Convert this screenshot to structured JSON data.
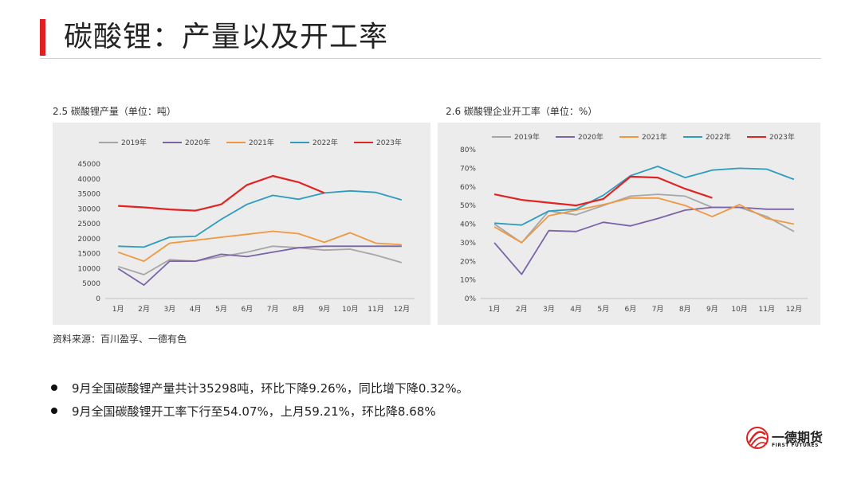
{
  "page": {
    "title": "碳酸锂：产量以及开工率",
    "source": "资料来源：百川盈孚、一德有色",
    "bullets": [
      "9月全国碳酸锂产量共计35298吨，环比下降9.26%，同比增下降0.32%。",
      "9月全国碳酸锂开工率下行至54.07%，上月59.21%，环比降8.68%"
    ],
    "logo": {
      "name_cn": "一德期货",
      "name_en": "FIRST FUTURES"
    }
  },
  "colors": {
    "2019年": "#a6a6a6",
    "2020年": "#7b63a8",
    "2021年": "#f0983e",
    "2022年": "#2e9cc0",
    "2023年": "#e02424",
    "accent": "#e02020"
  },
  "chart_data": [
    {
      "type": "line",
      "caption": "2.5 碳酸锂产量（单位：吨）",
      "categories": [
        "1月",
        "2月",
        "3月",
        "4月",
        "5月",
        "6月",
        "7月",
        "8月",
        "9月",
        "10月",
        "11月",
        "12月"
      ],
      "ylim": [
        0,
        45000
      ],
      "yticks": [
        0,
        5000,
        10000,
        15000,
        20000,
        25000,
        30000,
        35000,
        40000,
        45000
      ],
      "ytick_labels": [
        "0",
        "5000",
        "10000",
        "15000",
        "20000",
        "25000",
        "30000",
        "35000",
        "40000",
        "45000"
      ],
      "legend_position": "top",
      "grid": false,
      "series": [
        {
          "name": "2019年",
          "values": [
            10700,
            8000,
            13000,
            12500,
            14000,
            15500,
            17500,
            17000,
            16200,
            16500,
            14500,
            12000
          ]
        },
        {
          "name": "2020年",
          "values": [
            10000,
            4500,
            12500,
            12500,
            14800,
            14000,
            15500,
            17000,
            17500,
            17500,
            17500,
            17500
          ]
        },
        {
          "name": "2021年",
          "values": [
            15500,
            12500,
            18500,
            19500,
            20500,
            21500,
            22500,
            21700,
            18800,
            22000,
            18500,
            18000
          ]
        },
        {
          "name": "2022年",
          "values": [
            17500,
            17200,
            20500,
            20800,
            26500,
            31500,
            34500,
            33200,
            35300,
            36000,
            35500,
            33000
          ]
        },
        {
          "name": "2023年",
          "values": [
            31000,
            30500,
            29800,
            29400,
            31500,
            38000,
            41000,
            38900,
            35300,
            null,
            null,
            null
          ]
        }
      ]
    },
    {
      "type": "line",
      "caption": "2.6 碳酸锂企业开工率（单位：%）",
      "categories": [
        "1月",
        "2月",
        "3月",
        "4月",
        "5月",
        "6月",
        "7月",
        "8月",
        "9月",
        "10月",
        "11月",
        "12月"
      ],
      "ylim": [
        0,
        80
      ],
      "yticks": [
        0,
        10,
        20,
        30,
        40,
        50,
        60,
        70,
        80
      ],
      "ytick_labels": [
        "0%",
        "10%",
        "20%",
        "30%",
        "40%",
        "50%",
        "60%",
        "70%",
        "80%"
      ],
      "legend_position": "top",
      "grid": false,
      "series": [
        {
          "name": "2019年",
          "values": [
            40,
            30,
            47,
            45,
            50,
            55,
            56,
            55,
            49,
            49,
            44,
            36
          ]
        },
        {
          "name": "2020年",
          "values": [
            30,
            13,
            36.5,
            36,
            41,
            39,
            43,
            47.5,
            49,
            49,
            48,
            48
          ]
        },
        {
          "name": "2021年",
          "values": [
            38.5,
            30,
            44.5,
            47.5,
            50.5,
            54,
            54,
            50,
            44,
            50.5,
            43,
            40
          ]
        },
        {
          "name": "2022年",
          "values": [
            40.5,
            39.5,
            47,
            48,
            55.5,
            66,
            71,
            65,
            69,
            70,
            69.5,
            64
          ]
        },
        {
          "name": "2023年",
          "values": [
            56,
            53,
            51.5,
            50,
            53.5,
            65.5,
            65,
            59,
            54.07,
            null,
            null,
            null
          ]
        }
      ]
    }
  ]
}
